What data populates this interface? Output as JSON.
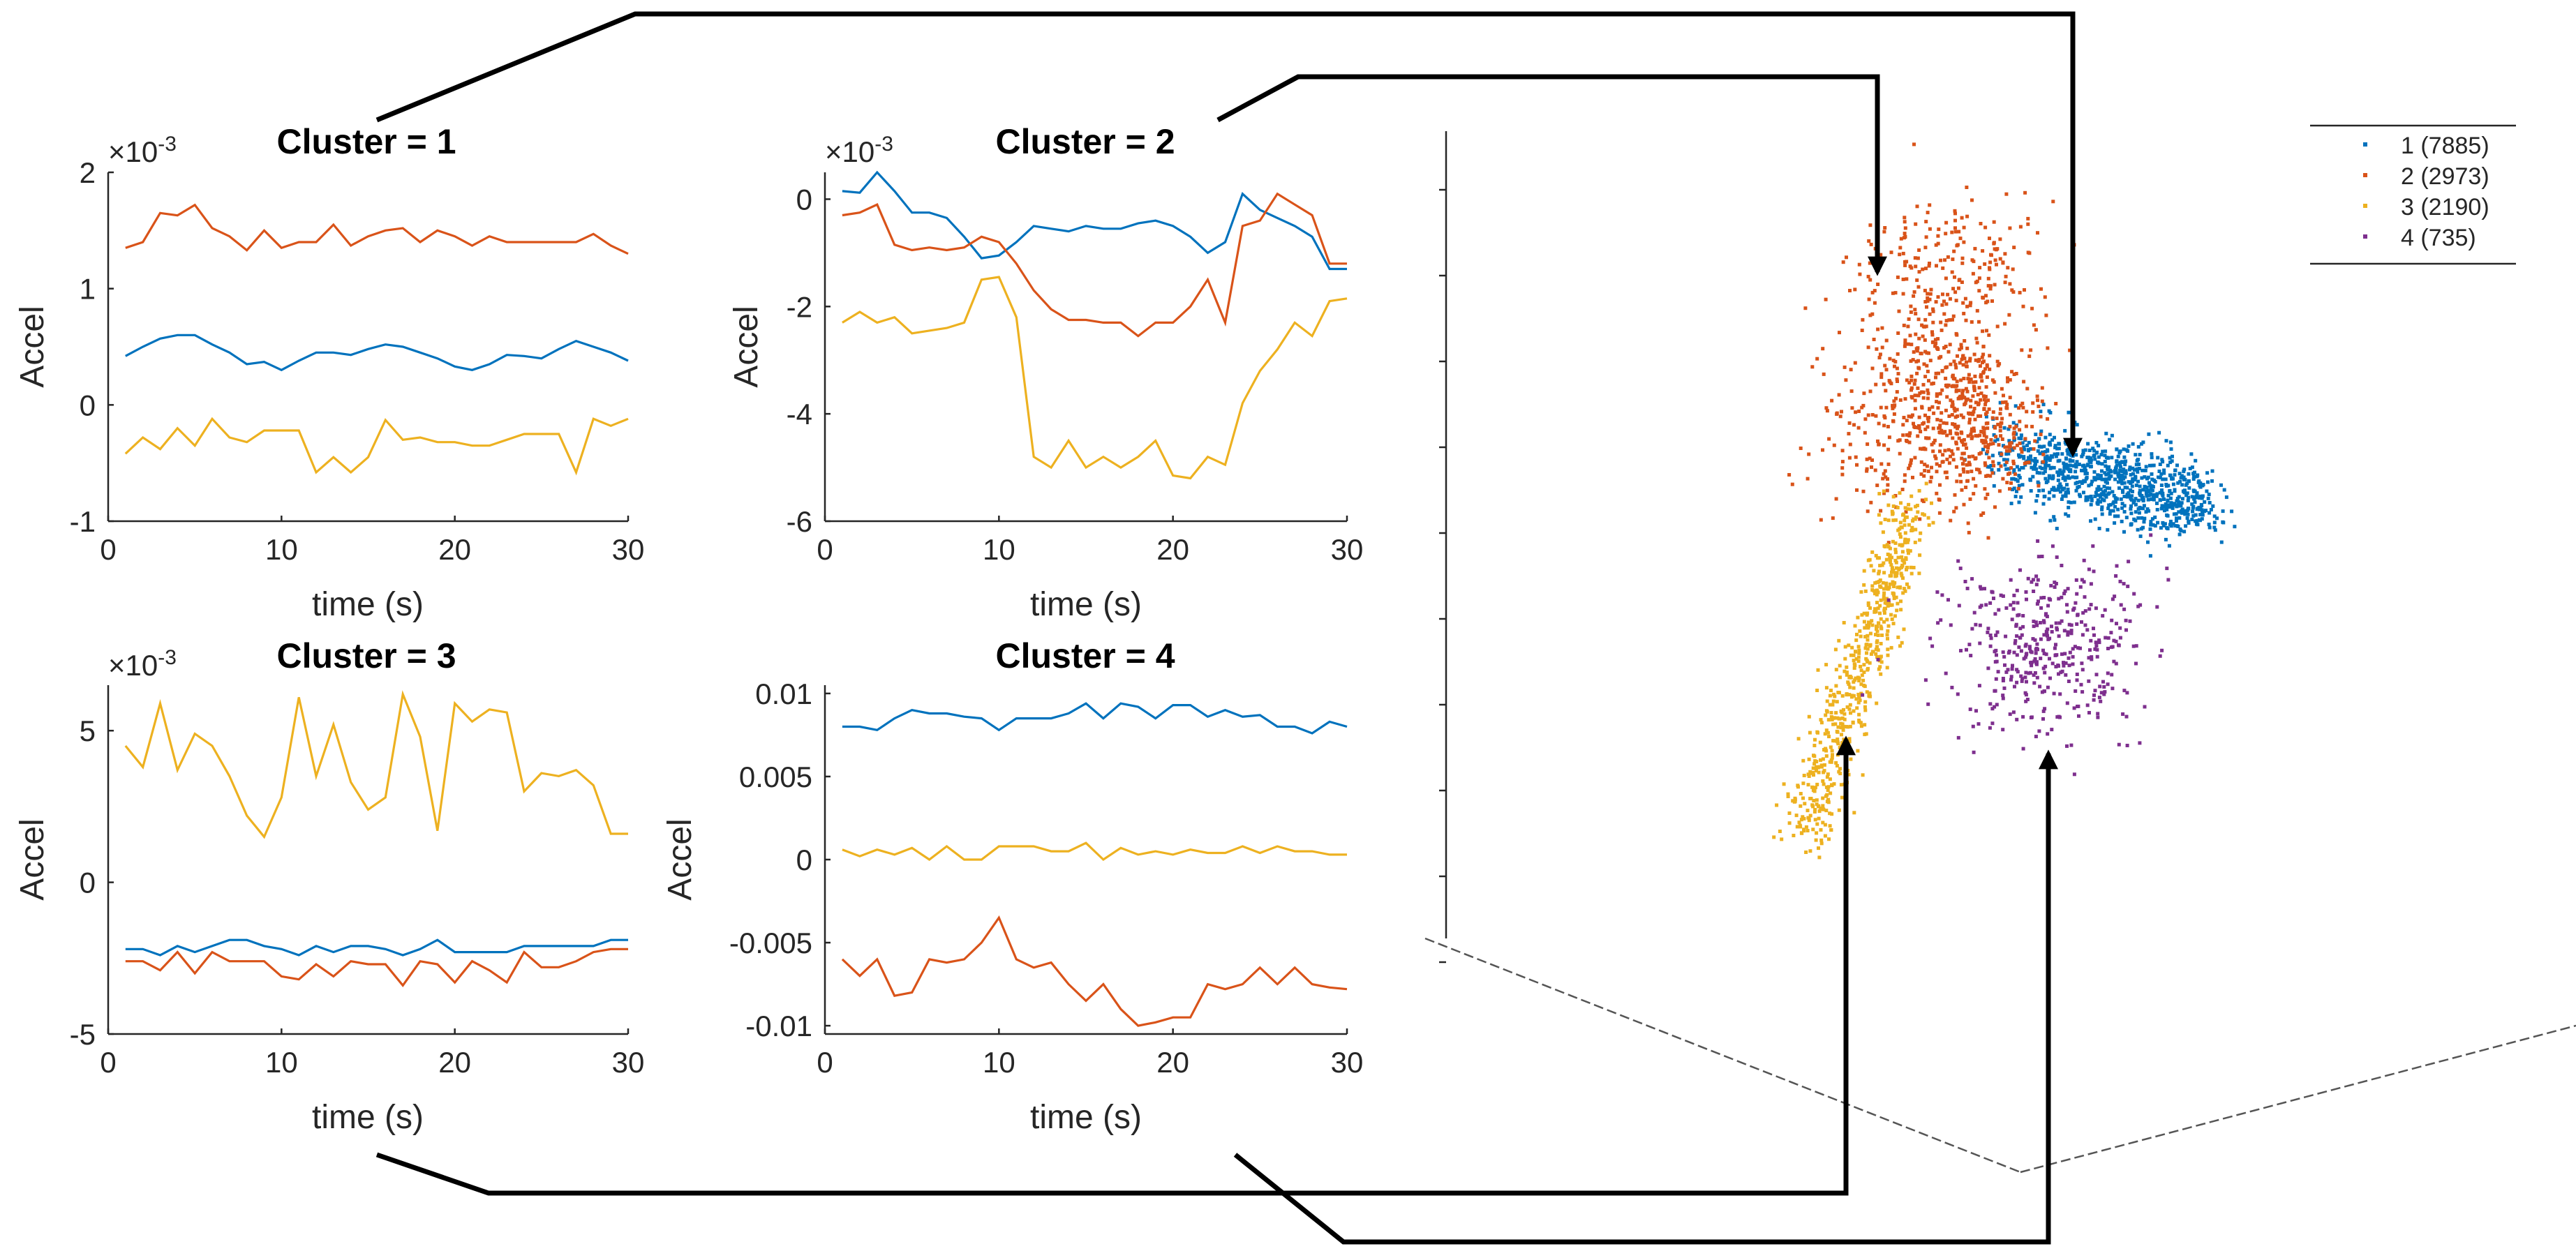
{
  "chart_data": [
    {
      "type": "line",
      "title": "Cluster = 1",
      "xlabel": "time (s)",
      "ylabel": "Accel",
      "exponent_prefix": "×10",
      "exponent_power": "-3",
      "xlim": [
        0,
        30
      ],
      "ylim": [
        -1,
        2
      ],
      "xticks": [
        "0",
        "10",
        "20",
        "30"
      ],
      "yticks": [
        "-1",
        "0",
        "1",
        "2"
      ],
      "ytick_values": [
        -1,
        0,
        1,
        2
      ],
      "x": [
        1,
        2,
        3,
        4,
        5,
        6,
        7,
        8,
        9,
        10,
        11,
        12,
        13,
        14,
        15,
        16,
        17,
        18,
        19,
        20,
        21,
        22,
        23,
        24,
        25,
        26,
        27,
        28,
        29,
        30
      ],
      "series": [
        {
          "name": "orange",
          "color": "#D95319",
          "values": [
            1.35,
            1.4,
            1.65,
            1.63,
            1.72,
            1.52,
            1.45,
            1.33,
            1.5,
            1.35,
            1.4,
            1.4,
            1.55,
            1.37,
            1.45,
            1.5,
            1.52,
            1.4,
            1.5,
            1.45,
            1.37,
            1.45,
            1.4,
            1.4,
            1.4,
            1.4,
            1.4,
            1.47,
            1.37,
            1.3
          ]
        },
        {
          "name": "blue",
          "color": "#0072BD",
          "values": [
            0.42,
            0.5,
            0.57,
            0.6,
            0.6,
            0.52,
            0.45,
            0.35,
            0.37,
            0.3,
            0.38,
            0.45,
            0.45,
            0.43,
            0.48,
            0.52,
            0.5,
            0.45,
            0.4,
            0.33,
            0.3,
            0.35,
            0.43,
            0.42,
            0.4,
            0.48,
            0.55,
            0.5,
            0.45,
            0.38
          ]
        },
        {
          "name": "yellow",
          "color": "#EDB120",
          "values": [
            -0.42,
            -0.28,
            -0.38,
            -0.2,
            -0.35,
            -0.12,
            -0.28,
            -0.32,
            -0.22,
            -0.22,
            -0.22,
            -0.58,
            -0.45,
            -0.58,
            -0.45,
            -0.13,
            -0.3,
            -0.28,
            -0.32,
            -0.32,
            -0.35,
            -0.35,
            -0.3,
            -0.25,
            -0.25,
            -0.25,
            -0.58,
            -0.12,
            -0.18,
            -0.12
          ]
        }
      ]
    },
    {
      "type": "line",
      "title": "Cluster = 2",
      "xlabel": "time (s)",
      "ylabel": "Accel",
      "exponent_prefix": "×10",
      "exponent_power": "-3",
      "xlim": [
        0,
        30
      ],
      "ylim": [
        -6,
        0.5
      ],
      "xticks": [
        "0",
        "10",
        "20",
        "30"
      ],
      "yticks": [
        "-6",
        "-4",
        "-2",
        "0"
      ],
      "ytick_values": [
        -6,
        -4,
        -2,
        0
      ],
      "x": [
        1,
        2,
        3,
        4,
        5,
        6,
        7,
        8,
        9,
        10,
        11,
        12,
        13,
        14,
        15,
        16,
        17,
        18,
        19,
        20,
        21,
        22,
        23,
        24,
        25,
        26,
        27,
        28,
        29,
        30
      ],
      "series": [
        {
          "name": "blue",
          "color": "#0072BD",
          "values": [
            0.15,
            0.12,
            0.5,
            0.15,
            -0.25,
            -0.25,
            -0.35,
            -0.7,
            -1.1,
            -1.05,
            -0.8,
            -0.5,
            -0.55,
            -0.6,
            -0.5,
            -0.55,
            -0.55,
            -0.45,
            -0.4,
            -0.5,
            -0.7,
            -1.0,
            -0.8,
            0.1,
            -0.2,
            -0.35,
            -0.5,
            -0.7,
            -1.3,
            -1.3
          ]
        },
        {
          "name": "orange",
          "color": "#D95319",
          "values": [
            -0.3,
            -0.25,
            -0.1,
            -0.85,
            -0.95,
            -0.9,
            -0.95,
            -0.9,
            -0.7,
            -0.8,
            -1.2,
            -1.7,
            -2.05,
            -2.25,
            -2.25,
            -2.3,
            -2.3,
            -2.55,
            -2.3,
            -2.3,
            -2.0,
            -1.5,
            -2.3,
            -0.5,
            -0.4,
            0.1,
            -0.1,
            -0.3,
            -1.2,
            -1.2
          ]
        },
        {
          "name": "yellow",
          "color": "#EDB120",
          "values": [
            -2.3,
            -2.1,
            -2.3,
            -2.2,
            -2.5,
            -2.45,
            -2.4,
            -2.3,
            -1.5,
            -1.45,
            -2.2,
            -4.8,
            -5.0,
            -4.5,
            -5.0,
            -4.8,
            -5.0,
            -4.8,
            -4.5,
            -5.15,
            -5.2,
            -4.8,
            -4.95,
            -3.8,
            -3.2,
            -2.8,
            -2.3,
            -2.55,
            -1.9,
            -1.85
          ]
        }
      ]
    },
    {
      "type": "line",
      "title": "Cluster = 3",
      "xlabel": "time (s)",
      "ylabel": "Accel",
      "exponent_prefix": "×10",
      "exponent_power": "-3",
      "xlim": [
        0,
        30
      ],
      "ylim": [
        -5,
        6.5
      ],
      "xticks": [
        "0",
        "10",
        "20",
        "30"
      ],
      "yticks": [
        "-5",
        "0",
        "5"
      ],
      "ytick_values": [
        -5,
        0,
        5
      ],
      "x": [
        1,
        2,
        3,
        4,
        5,
        6,
        7,
        8,
        9,
        10,
        11,
        12,
        13,
        14,
        15,
        16,
        17,
        18,
        19,
        20,
        21,
        22,
        23,
        24,
        25,
        26,
        27,
        28,
        29,
        30
      ],
      "series": [
        {
          "name": "yellow",
          "color": "#EDB120",
          "values": [
            4.5,
            3.8,
            5.9,
            3.7,
            4.9,
            4.5,
            3.5,
            2.2,
            1.5,
            2.8,
            6.1,
            3.5,
            5.2,
            3.3,
            2.4,
            2.8,
            6.2,
            4.8,
            1.7,
            5.9,
            5.3,
            5.7,
            5.6,
            3.0,
            3.6,
            3.5,
            3.7,
            3.2,
            1.6,
            1.6
          ]
        },
        {
          "name": "blue",
          "color": "#0072BD",
          "values": [
            -2.2,
            -2.2,
            -2.4,
            -2.1,
            -2.3,
            -2.1,
            -1.9,
            -1.9,
            -2.1,
            -2.2,
            -2.4,
            -2.1,
            -2.3,
            -2.1,
            -2.1,
            -2.2,
            -2.4,
            -2.2,
            -1.9,
            -2.3,
            -2.3,
            -2.3,
            -2.3,
            -2.1,
            -2.1,
            -2.1,
            -2.1,
            -2.1,
            -1.9,
            -1.9
          ]
        },
        {
          "name": "orange",
          "color": "#D95319",
          "values": [
            -2.6,
            -2.6,
            -2.9,
            -2.3,
            -3.0,
            -2.3,
            -2.6,
            -2.6,
            -2.6,
            -3.1,
            -3.2,
            -2.7,
            -3.1,
            -2.6,
            -2.7,
            -2.7,
            -3.4,
            -2.6,
            -2.7,
            -3.3,
            -2.6,
            -2.9,
            -3.3,
            -2.3,
            -2.8,
            -2.8,
            -2.6,
            -2.3,
            -2.2,
            -2.2
          ]
        }
      ]
    },
    {
      "type": "line",
      "title": "Cluster = 4",
      "xlabel": "time (s)",
      "ylabel": "Accel",
      "exponent_prefix": "",
      "exponent_power": "",
      "xlim": [
        0,
        30
      ],
      "ylim": [
        -0.0105,
        0.0105
      ],
      "xticks": [
        "0",
        "10",
        "20",
        "30"
      ],
      "yticks": [
        "0.01",
        "0.005",
        "0",
        "-0.005",
        "-0.01"
      ],
      "ytick_values": [
        0.01,
        0.005,
        0,
        -0.005,
        -0.01
      ],
      "x": [
        1,
        2,
        3,
        4,
        5,
        6,
        7,
        8,
        9,
        10,
        11,
        12,
        13,
        14,
        15,
        16,
        17,
        18,
        19,
        20,
        21,
        22,
        23,
        24,
        25,
        26,
        27,
        28,
        29,
        30
      ],
      "series": [
        {
          "name": "blue",
          "color": "#0072BD",
          "values": [
            0.008,
            0.008,
            0.0078,
            0.0085,
            0.009,
            0.0088,
            0.0088,
            0.0086,
            0.0085,
            0.0078,
            0.0085,
            0.0085,
            0.0085,
            0.0088,
            0.0094,
            0.0085,
            0.0094,
            0.0092,
            0.0085,
            0.0093,
            0.0093,
            0.0086,
            0.009,
            0.0086,
            0.0087,
            0.008,
            0.008,
            0.0076,
            0.0083,
            0.008
          ]
        },
        {
          "name": "yellow",
          "color": "#EDB120",
          "values": [
            0.0006,
            0.0002,
            0.0006,
            0.0003,
            0.0007,
            0.0,
            0.0008,
            0.0,
            0.0,
            0.0008,
            0.0008,
            0.0008,
            0.0005,
            0.0005,
            0.001,
            0.0,
            0.0007,
            0.0003,
            0.0005,
            0.0003,
            0.0006,
            0.0004,
            0.0004,
            0.0008,
            0.0004,
            0.0008,
            0.0005,
            0.0005,
            0.0003,
            0.0003
          ]
        },
        {
          "name": "orange",
          "color": "#D95319",
          "values": [
            -0.006,
            -0.007,
            -0.006,
            -0.0082,
            -0.008,
            -0.006,
            -0.0062,
            -0.006,
            -0.005,
            -0.0035,
            -0.006,
            -0.0065,
            -0.0062,
            -0.0075,
            -0.0085,
            -0.0075,
            -0.009,
            -0.01,
            -0.0098,
            -0.0095,
            -0.0095,
            -0.0075,
            -0.0078,
            -0.0075,
            -0.0065,
            -0.0075,
            -0.0065,
            -0.0075,
            -0.0077,
            -0.0078
          ]
        }
      ]
    },
    {
      "type": "scatter",
      "dimensions": 3,
      "title": "",
      "legend": [
        {
          "label": "1 (7885)",
          "color": "#0072BD"
        },
        {
          "label": "2 (2973)",
          "color": "#D95319"
        },
        {
          "label": "3 (2190)",
          "color": "#EDB120"
        },
        {
          "label": "4 (735)",
          "color": "#7E2F8E"
        }
      ],
      "cluster_point_counts": [
        7885,
        2973,
        2190,
        735
      ],
      "legend_placement": "top-right"
    }
  ]
}
